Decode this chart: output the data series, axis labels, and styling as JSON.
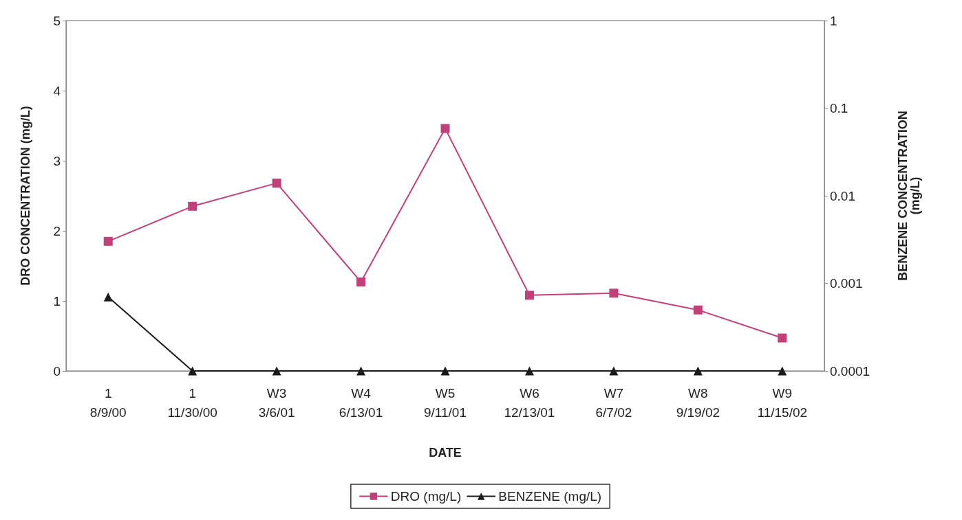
{
  "chart_data": {
    "type": "line",
    "xlabel": "DATE",
    "ylabel": "DRO CONCENTRATION (mg/L)",
    "y2label": "BENZENE CONCENTRATION\n(mg/L)",
    "categories": [
      "1\n8/9/00",
      "1\n11/30/00",
      "W3\n3/6/01",
      "W4\n6/13/01",
      "W5\n9/11/01",
      "W6\n12/13/01",
      "W7\n6/7/02",
      "W8\n9/19/02",
      "W9\n11/15/02"
    ],
    "series": [
      {
        "name": "DRO (mg/L)",
        "color": "#c2407a",
        "marker": "square",
        "values": [
          1.85,
          2.35,
          2.68,
          1.27,
          3.46,
          1.08,
          1.11,
          0.87,
          0.47
        ]
      },
      {
        "name": "BENZENE (mg/L)",
        "color": "#1a1a1a",
        "marker": "triangle",
        "axis": "y2",
        "values": [
          0.0007,
          0.0001,
          0.0001,
          0.0001,
          0.0001,
          0.0001,
          0.0001,
          0.0001,
          0.0001
        ]
      }
    ],
    "ylim": [
      0,
      5
    ],
    "yticks": [
      0,
      1,
      2,
      3,
      4,
      5
    ],
    "y2lim": [
      0.0001,
      1
    ],
    "y2ticks": [
      0.0001,
      0.001,
      0.01,
      0.1,
      1
    ],
    "log": "y2",
    "grid": false,
    "legend": "bottom",
    "line_style": "solid"
  }
}
